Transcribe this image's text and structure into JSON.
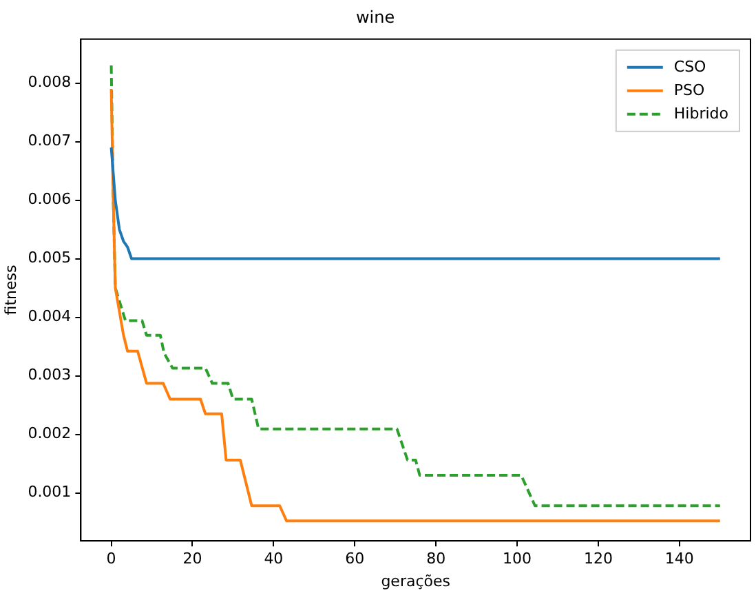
{
  "chart_data": {
    "type": "line",
    "title": "wine",
    "xlabel": "gerações",
    "ylabel": "fitness",
    "xlim": [
      -7.5,
      157.5
    ],
    "ylim": [
      0.00018,
      0.00875
    ],
    "xticks": [
      0,
      20,
      40,
      60,
      80,
      100,
      120,
      140
    ],
    "yticks": [
      0.001,
      0.002,
      0.003,
      0.004,
      0.005,
      0.006,
      0.007,
      0.008
    ],
    "grid": false,
    "legend": "top right",
    "series": [
      {
        "name": "CSO",
        "color": "#1f77b4",
        "line_style": "solid",
        "x": [
          0,
          1,
          2,
          3,
          4,
          5,
          150
        ],
        "values": [
          0.0069,
          0.006,
          0.0055,
          0.0053,
          0.0052,
          0.005,
          0.005
        ]
      },
      {
        "name": "PSO",
        "color": "#ff7f0e",
        "line_style": "solid",
        "x": [
          0,
          0.5,
          1,
          3,
          4,
          6.5,
          8.7,
          12.8,
          14.5,
          22,
          23.2,
          27.2,
          28.3,
          31.8,
          34.6,
          41.5,
          43.2,
          150
        ],
        "values": [
          0.0079,
          0.006,
          0.0045,
          0.0037,
          0.00342,
          0.00342,
          0.00287,
          0.00287,
          0.0026,
          0.0026,
          0.00235,
          0.00235,
          0.00156,
          0.00156,
          0.00078,
          0.00078,
          0.00052,
          0.00052
        ]
      },
      {
        "name": "Hibrido",
        "color": "#2ca02c",
        "line_style": "dashed",
        "x": [
          0,
          0.5,
          1,
          3.5,
          7.6,
          8.7,
          12.1,
          13,
          15.1,
          23.2,
          24.9,
          28.8,
          30,
          34.6,
          36.3,
          70.4,
          73,
          75,
          76,
          101,
          104.4,
          150
        ],
        "values": [
          0.0083,
          0.006,
          0.0045,
          0.00394,
          0.00394,
          0.00369,
          0.00369,
          0.00339,
          0.00313,
          0.00313,
          0.00287,
          0.00287,
          0.0026,
          0.0026,
          0.00209,
          0.00209,
          0.00156,
          0.00156,
          0.0013,
          0.0013,
          0.00078,
          0.00078
        ]
      }
    ]
  }
}
